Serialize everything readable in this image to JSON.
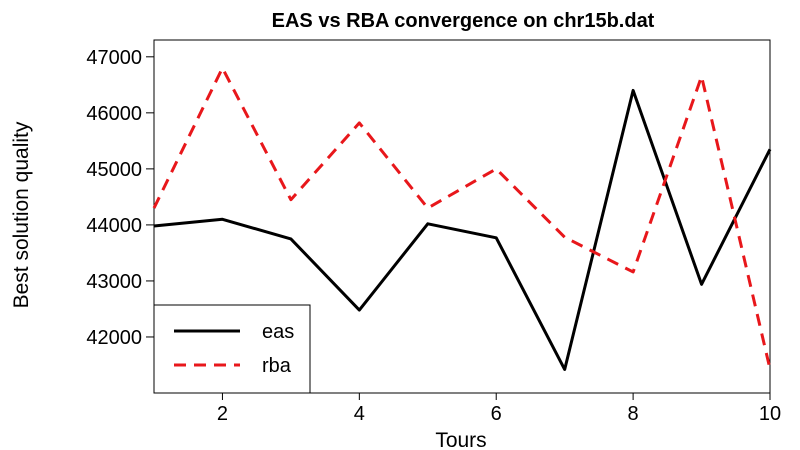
{
  "chart_data": {
    "type": "line",
    "title": "EAS vs RBA convergence on chr15b.dat",
    "xlabel": "Tours",
    "ylabel": "Best solution quality",
    "x": [
      1,
      2,
      3,
      4,
      5,
      6,
      7,
      8,
      9,
      10
    ],
    "xlim": [
      1,
      10
    ],
    "ylim": [
      41000,
      47300
    ],
    "xticks": [
      "2",
      "4",
      "6",
      "8",
      "10"
    ],
    "yticks": [
      "42000",
      "43000",
      "44000",
      "45000",
      "46000",
      "47000"
    ],
    "grid": false,
    "legend_position": "bottom-left",
    "series": [
      {
        "name": "eas",
        "color": "#000000",
        "style": "solid",
        "values": [
          43980,
          44100,
          43750,
          42480,
          44020,
          43770,
          41420,
          46400,
          42940,
          45350
        ]
      },
      {
        "name": "rba",
        "color": "#e8171b",
        "style": "dashed",
        "values": [
          44300,
          46800,
          44450,
          45820,
          44300,
          45000,
          43780,
          43160,
          46650,
          41430
        ]
      }
    ]
  }
}
